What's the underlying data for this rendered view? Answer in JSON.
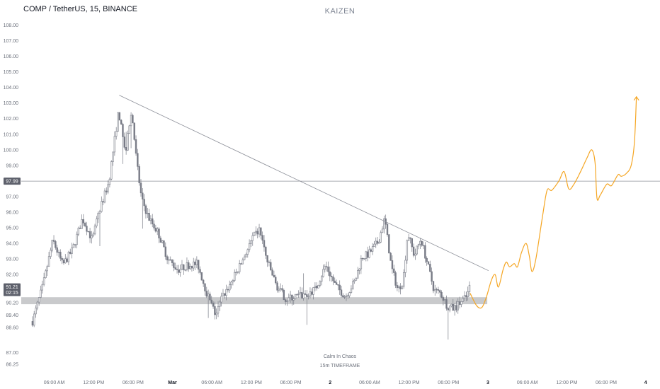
{
  "header": {
    "title": "COMP / TetherUS, 15, BINANCE",
    "author": "KAIZEN"
  },
  "watermark": {
    "line1": "Calm In Chaos",
    "line2": "15m TIMEFRAME"
  },
  "colors": {
    "candle": "#787b86",
    "trendline": "#8d9099",
    "support_zone": "#c9cacc",
    "projection": "#f5a623",
    "badge": "#5d606b",
    "horizontal_level": "#8d9099"
  },
  "chart_data": {
    "type": "candlestick",
    "title": "COMP / TetherUS, 15, BINANCE",
    "y_axis": {
      "position": "left",
      "ylim": [
        86.0,
        108.3
      ],
      "ticks": [
        86.25,
        87.0,
        88.6,
        89.4,
        90.2,
        91.0,
        92.0,
        93.0,
        94.0,
        95.0,
        96.0,
        97.0,
        99.0,
        100.0,
        101.0,
        102.0,
        103.0,
        104.0,
        105.0,
        106.0,
        107.0,
        108.0
      ],
      "tick_labels": [
        "86.25",
        "87.00",
        "88.60",
        "89.40",
        "90.20",
        "91.00",
        "92.00",
        "93.00",
        "94.00",
        "95.00",
        "96.00",
        "97.00",
        "99.00",
        "100.00",
        "101.00",
        "102.00",
        "103.00",
        "104.00",
        "105.00",
        "106.00",
        "107.00",
        "108.00"
      ]
    },
    "x_axis": {
      "tick_labels": [
        {
          "label": "06:00 AM",
          "t": 0.7,
          "bold": false
        },
        {
          "label": "12:00 PM",
          "t": 6.7,
          "bold": false
        },
        {
          "label": "06:00 PM",
          "t": 12.7,
          "bold": false
        },
        {
          "label": "Mar",
          "t": 18.7,
          "bold": true
        },
        {
          "label": "06:00 AM",
          "t": 24.7,
          "bold": false
        },
        {
          "label": "12:00 PM",
          "t": 30.7,
          "bold": false
        },
        {
          "label": "06:00 PM",
          "t": 36.7,
          "bold": false
        },
        {
          "label": "2",
          "t": 42.7,
          "bold": true
        },
        {
          "label": "06:00 AM",
          "t": 48.7,
          "bold": false
        },
        {
          "label": "12:00 PM",
          "t": 54.7,
          "bold": false
        },
        {
          "label": "06:00 PM",
          "t": 60.7,
          "bold": false
        },
        {
          "label": "3",
          "t": 66.7,
          "bold": true
        },
        {
          "label": "06:00 AM",
          "t": 72.7,
          "bold": false
        },
        {
          "label": "12:00 PM",
          "t": 78.7,
          "bold": false
        },
        {
          "label": "06:00 PM",
          "t": 84.7,
          "bold": false
        },
        {
          "label": "4",
          "t": 90.7,
          "bold": true
        }
      ]
    },
    "price_badges": [
      {
        "value": "97.99",
        "price": 97.99
      },
      {
        "value": "91.21",
        "sub": "02:15",
        "price": 91.21
      }
    ],
    "horizontal_level": 97.99,
    "support_zone": {
      "low": 90.1,
      "high": 90.55,
      "t_end": 66.6
    },
    "trendline": {
      "start": {
        "t": 10.6,
        "price": 103.5
      },
      "end": {
        "t": 66.8,
        "price": 92.25
      }
    },
    "price_anchors": [
      [
        -2.6,
        89.0
      ],
      [
        -1.0,
        91.3
      ],
      [
        0.5,
        94.2
      ],
      [
        2.0,
        92.6
      ],
      [
        3.5,
        93.6
      ],
      [
        5.0,
        95.6
      ],
      [
        6.5,
        94.2
      ],
      [
        7.5,
        96.0
      ],
      [
        9.0,
        97.9
      ],
      [
        10.5,
        102.5
      ],
      [
        11.5,
        99.8
      ],
      [
        12.5,
        102.4
      ],
      [
        13.3,
        99.0
      ],
      [
        14.0,
        96.9
      ],
      [
        15.0,
        95.7
      ],
      [
        16.5,
        94.7
      ],
      [
        18.0,
        93.0
      ],
      [
        19.5,
        92.3
      ],
      [
        21.0,
        92.6
      ],
      [
        22.5,
        92.7
      ],
      [
        24.0,
        90.7
      ],
      [
        25.3,
        89.4
      ],
      [
        26.2,
        90.5
      ],
      [
        27.5,
        91.4
      ],
      [
        29.0,
        92.6
      ],
      [
        31.0,
        94.4
      ],
      [
        32.0,
        94.9
      ],
      [
        33.0,
        93.0
      ],
      [
        34.5,
        91.3
      ],
      [
        36.0,
        90.4
      ],
      [
        37.5,
        90.6
      ],
      [
        39.0,
        90.7
      ],
      [
        40.5,
        91.1
      ],
      [
        42.0,
        92.6
      ],
      [
        43.5,
        91.3
      ],
      [
        45.0,
        90.6
      ],
      [
        46.5,
        91.6
      ],
      [
        47.5,
        93.1
      ],
      [
        48.5,
        93.3
      ],
      [
        50.0,
        94.1
      ],
      [
        51.0,
        95.6
      ],
      [
        52.0,
        92.5
      ],
      [
        53.0,
        91.0
      ],
      [
        53.8,
        91.6
      ],
      [
        54.5,
        94.7
      ],
      [
        55.5,
        93.2
      ],
      [
        56.5,
        94.3
      ],
      [
        57.5,
        92.7
      ],
      [
        58.5,
        91.0
      ],
      [
        59.5,
        90.8
      ],
      [
        60.5,
        90.0
      ],
      [
        61.5,
        89.8
      ],
      [
        62.5,
        90.2
      ],
      [
        63.5,
        90.6
      ],
      [
        64.0,
        91.3
      ]
    ],
    "projection_path": [
      [
        64.0,
        90.8
      ],
      [
        65.0,
        90.0
      ],
      [
        65.8,
        89.9
      ],
      [
        66.5,
        90.6
      ],
      [
        67.2,
        91.6
      ],
      [
        67.8,
        92.0
      ],
      [
        68.3,
        91.2
      ],
      [
        69.0,
        92.3
      ],
      [
        69.5,
        92.8
      ],
      [
        70.0,
        92.5
      ],
      [
        70.7,
        92.7
      ],
      [
        71.2,
        92.5
      ],
      [
        71.8,
        93.4
      ],
      [
        72.5,
        94.0
      ],
      [
        73.0,
        93.2
      ],
      [
        73.4,
        92.2
      ],
      [
        74.0,
        93.0
      ],
      [
        75.0,
        95.7
      ],
      [
        75.7,
        97.4
      ],
      [
        76.4,
        97.4
      ],
      [
        77.5,
        98.0
      ],
      [
        78.3,
        98.6
      ],
      [
        79.0,
        97.5
      ],
      [
        79.8,
        97.8
      ],
      [
        80.8,
        98.6
      ],
      [
        81.8,
        99.5
      ],
      [
        82.5,
        100.0
      ],
      [
        83.0,
        99.2
      ],
      [
        83.3,
        96.9
      ],
      [
        83.8,
        97.1
      ],
      [
        84.8,
        97.8
      ],
      [
        85.5,
        97.7
      ],
      [
        86.5,
        98.4
      ],
      [
        87.0,
        98.3
      ],
      [
        87.8,
        98.5
      ],
      [
        88.5,
        99.0
      ],
      [
        89.0,
        100.5
      ],
      [
        89.3,
        103.4
      ]
    ]
  }
}
